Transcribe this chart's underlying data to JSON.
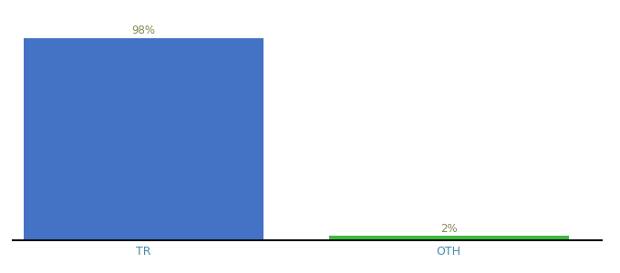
{
  "categories": [
    "TR",
    "OTH"
  ],
  "values": [
    98,
    2
  ],
  "bar_colors": [
    "#4472c4",
    "#3dbb3d"
  ],
  "label_texts": [
    "98%",
    "2%"
  ],
  "label_color": "#888855",
  "background_color": "#ffffff",
  "ylim": [
    0,
    106
  ],
  "bar_width": 0.55,
  "x_positions": [
    0.3,
    1.0
  ],
  "xlim": [
    0.0,
    1.35
  ]
}
